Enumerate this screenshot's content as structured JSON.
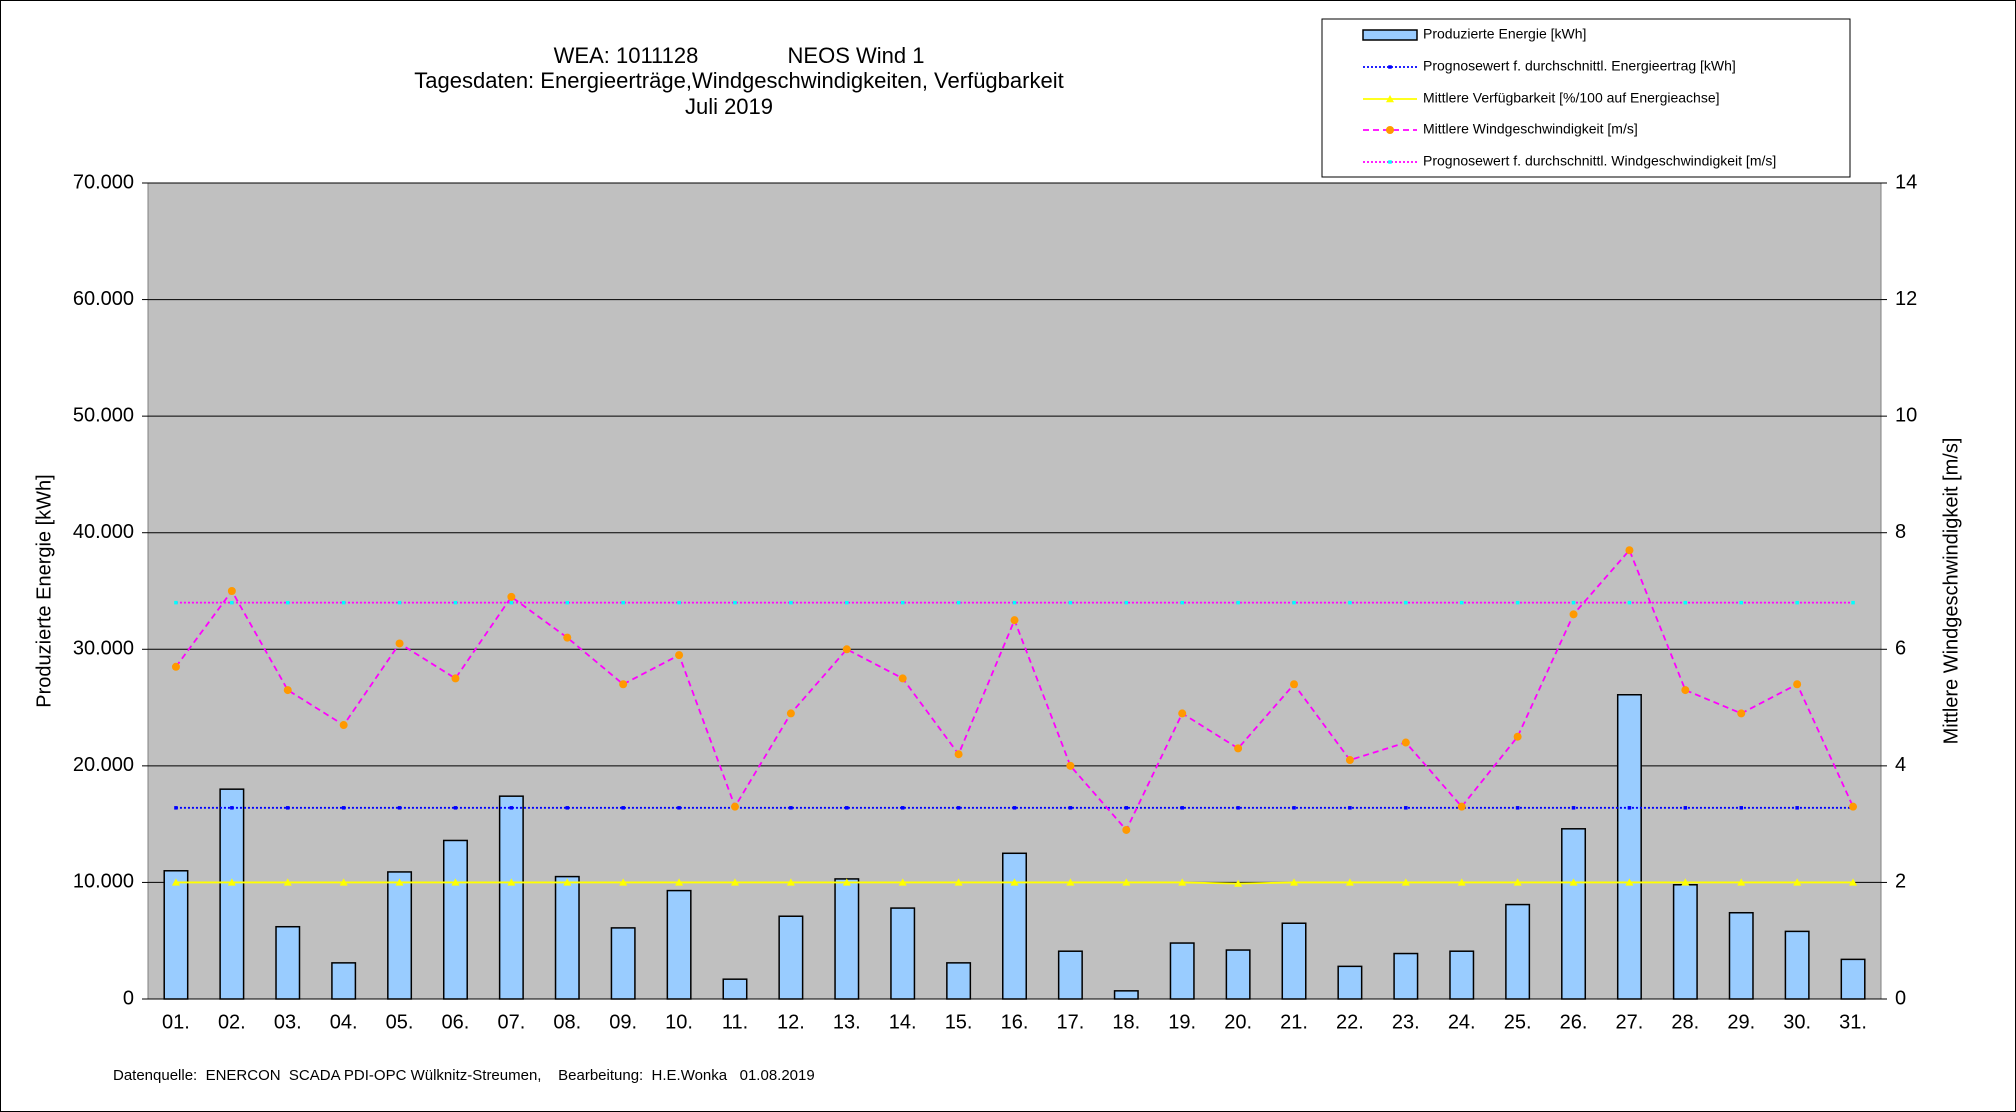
{
  "chart_data": {
    "type": "bar",
    "title": [
      "WEA: 1011128",
      "NEOS Wind 1",
      "Tagesdaten:  Energieerträge,Windgeschwindigkeiten,  Verfügbarkeit",
      "Juli 2019"
    ],
    "ylabel": "Produzierte Energie [kWh]",
    "y2label": "Mittlere Windgeschwindigkeit [m/s]",
    "footer": "Datenquelle:  ENERCON  SCADA PDI-OPC Wülknitz-Streumen,    Bearbeitung:  H.E.Wonka   01.08.2019",
    "categories": [
      "01.",
      "02.",
      "03.",
      "04.",
      "05.",
      "06.",
      "07.",
      "08.",
      "09.",
      "10.",
      "11.",
      "12.",
      "13.",
      "14.",
      "15.",
      "16.",
      "17.",
      "18.",
      "19.",
      "20.",
      "21.",
      "22.",
      "23.",
      "24.",
      "25.",
      "26.",
      "27.",
      "28.",
      "29.",
      "30.",
      "31."
    ],
    "ylim": [
      0,
      70000
    ],
    "yticks": [
      0,
      {
        "value": 10000,
        "label": "10.000"
      },
      {
        "value": 20000,
        "label": "20.000"
      },
      {
        "value": 30000,
        "label": "30.000"
      },
      {
        "value": 40000,
        "label": "40.000"
      },
      {
        "value": 50000,
        "label": "50.000"
      },
      {
        "value": 60000,
        "label": "60.000"
      },
      {
        "value": 70000,
        "label": "70.000"
      }
    ],
    "y2lim": [
      0,
      14
    ],
    "y2ticks": [
      0,
      2,
      4,
      6,
      8,
      10,
      12,
      14
    ],
    "grid": true,
    "legend": "top-right",
    "series": [
      {
        "name": "Produzierte Energie [kWh]",
        "type": "bar",
        "color": "#99ccff",
        "values": [
          11000,
          18000,
          6200,
          3100,
          10900,
          13600,
          17400,
          10500,
          6100,
          9300,
          1700,
          7100,
          10300,
          7800,
          3100,
          12500,
          4100,
          700,
          4800,
          4200,
          6500,
          2800,
          3900,
          4100,
          8100,
          14600,
          26100,
          9800,
          7400,
          5800,
          3400
        ]
      },
      {
        "name": "Prognosewert f. durchschnittl. Energieertrag  [kWh]",
        "type": "line",
        "color": "#0000ff",
        "dash": "dotted",
        "marker": "square",
        "marker_color": "#0000ff",
        "values": [
          16400,
          16400,
          16400,
          16400,
          16400,
          16400,
          16400,
          16400,
          16400,
          16400,
          16400,
          16400,
          16400,
          16400,
          16400,
          16400,
          16400,
          16400,
          16400,
          16400,
          16400,
          16400,
          16400,
          16400,
          16400,
          16400,
          16400,
          16400,
          16400,
          16400,
          16400
        ]
      },
      {
        "name": "Mittlere Verfügbarkeit [%/100 auf Energieachse]",
        "type": "line",
        "color": "#ffff00",
        "dash": "solid",
        "marker": "triangle",
        "marker_color": "#ffff00",
        "values": [
          10000,
          10000,
          10000,
          10000,
          10000,
          10000,
          10000,
          10000,
          10000,
          10000,
          10000,
          10000,
          10000,
          10000,
          10000,
          10000,
          10000,
          10000,
          10000,
          9900,
          10000,
          10000,
          10000,
          10000,
          10000,
          10000,
          10000,
          10000,
          10000,
          10000,
          10000
        ]
      },
      {
        "name": "Mittlere Windgeschwindigkeit [m/s]",
        "type": "line",
        "axis": "y2",
        "color": "#ff00ff",
        "dash": "dashed",
        "marker": "circle",
        "marker_color": "#ff9900",
        "values": [
          5.7,
          7.0,
          5.3,
          4.7,
          6.1,
          5.5,
          6.9,
          6.2,
          5.4,
          5.9,
          3.3,
          4.9,
          6.0,
          5.5,
          4.2,
          6.5,
          4.0,
          2.9,
          4.9,
          4.3,
          5.4,
          4.1,
          4.4,
          3.3,
          4.5,
          6.6,
          7.7,
          5.3,
          4.9,
          5.4,
          3.3
        ]
      },
      {
        "name": "Prognosewert f. durchschnittl. Windgeschwindigkeit [m/s]",
        "type": "line",
        "axis": "y2",
        "color": "#ff00ff",
        "dash": "dotted",
        "marker": "square",
        "marker_color": "#00ffff",
        "values": [
          6.8,
          6.8,
          6.8,
          6.8,
          6.8,
          6.8,
          6.8,
          6.8,
          6.8,
          6.8,
          6.8,
          6.8,
          6.8,
          6.8,
          6.8,
          6.8,
          6.8,
          6.8,
          6.8,
          6.8,
          6.8,
          6.8,
          6.8,
          6.8,
          6.8,
          6.8,
          6.8,
          6.8,
          6.8,
          6.8,
          6.8
        ]
      }
    ]
  }
}
